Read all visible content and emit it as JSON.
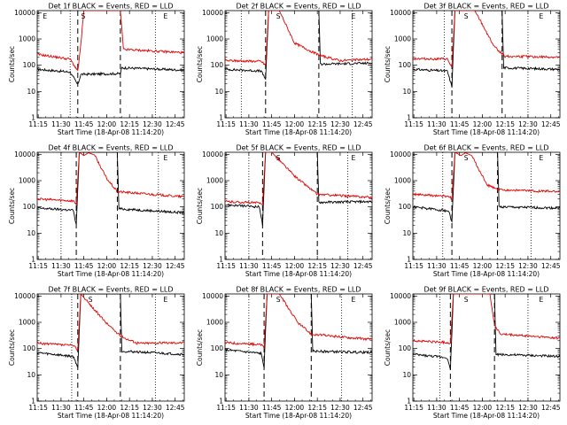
{
  "chart_data": {
    "type": "line",
    "layout": "3x3 grid",
    "xlabel": "Start Time (18-Apr-08 11:14:20)",
    "ylabel": "Counts/sec",
    "yscale": "log",
    "ylim": [
      1,
      12000
    ],
    "xlim": [
      "11:14:20",
      "12:51:00"
    ],
    "x_ticks": [
      "11:15",
      "11:30",
      "11:45",
      "12:00",
      "12:15",
      "12:30",
      "12:45"
    ],
    "y_ticks": [
      "1",
      "10",
      "100",
      "1000",
      "10000"
    ],
    "series_colors": {
      "black": "#000000",
      "red": "#e00000"
    },
    "panels": [
      {
        "title": "Det 1f BLACK = Events, RED = LLD",
        "markers": [
          "E",
          "S",
          "E"
        ],
        "dashed": [
          "11:41",
          "12:09"
        ],
        "dotted": [
          "11:36",
          "12:32"
        ],
        "black": [
          [
            "11:14:20",
            70
          ],
          [
            "11:36",
            55
          ],
          [
            "11:41",
            18
          ],
          [
            "11:43",
            45
          ],
          [
            "12:09",
            48
          ],
          [
            "12:10",
            80
          ],
          [
            "12:51",
            65
          ]
        ],
        "red": [
          [
            "11:14:20",
            260
          ],
          [
            "11:36",
            170
          ],
          [
            "11:41",
            60
          ],
          [
            "11:43",
            600
          ],
          [
            "11:45",
            12000
          ],
          [
            "12:09",
            12000
          ],
          [
            "12:11",
            400
          ],
          [
            "12:51",
            300
          ]
        ]
      },
      {
        "title": "Det 2f BLACK = Events, RED = LLD",
        "markers": [
          "S",
          "E"
        ],
        "dashed": [
          "11:41",
          "12:16"
        ],
        "dotted": [
          "11:25",
          "12:38"
        ],
        "black": [
          [
            "11:14:20",
            70
          ],
          [
            "11:38",
            60
          ],
          [
            "11:41",
            30
          ],
          [
            "11:43",
            12000
          ],
          [
            "12:16",
            12000
          ],
          [
            "12:17",
            110
          ],
          [
            "12:51",
            120
          ]
        ],
        "red": [
          [
            "11:14:20",
            150
          ],
          [
            "11:38",
            140
          ],
          [
            "11:41",
            100
          ],
          [
            "11:43",
            12000
          ],
          [
            "11:50",
            12000
          ],
          [
            "12:00",
            700
          ],
          [
            "12:16",
            240
          ],
          [
            "12:30",
            150
          ],
          [
            "12:51",
            170
          ]
        ]
      },
      {
        "title": "Det 3f BLACK = Events, RED = LLD",
        "markers": [
          "S",
          "E"
        ],
        "dashed": [
          "11:40",
          "12:13"
        ],
        "dotted": [
          "11:35",
          "12:30"
        ],
        "black": [
          [
            "11:14:20",
            70
          ],
          [
            "11:37",
            60
          ],
          [
            "11:40",
            15
          ],
          [
            "11:42",
            12000
          ],
          [
            "12:13",
            12000
          ],
          [
            "12:14",
            80
          ],
          [
            "12:51",
            70
          ]
        ],
        "red": [
          [
            "11:14:20",
            180
          ],
          [
            "11:37",
            170
          ],
          [
            "11:40",
            80
          ],
          [
            "11:42",
            12000
          ],
          [
            "11:55",
            12000
          ],
          [
            "12:08",
            500
          ],
          [
            "12:15",
            220
          ],
          [
            "12:51",
            200
          ]
        ]
      },
      {
        "title": "Det 4f BLACK = Events, RED = LLD",
        "markers": [
          "E"
        ],
        "dashed": [
          "11:40",
          "12:07"
        ],
        "dotted": [
          "11:30",
          "12:34"
        ],
        "black": [
          [
            "11:14:20",
            90
          ],
          [
            "11:38",
            75
          ],
          [
            "11:40",
            20
          ],
          [
            "11:42",
            12000
          ],
          [
            "12:07",
            12000
          ],
          [
            "12:08",
            85
          ],
          [
            "12:51",
            60
          ]
        ],
        "red": [
          [
            "11:14:20",
            200
          ],
          [
            "11:38",
            170
          ],
          [
            "11:40",
            130
          ],
          [
            "11:42",
            12000
          ],
          [
            "11:45",
            9000
          ],
          [
            "11:48",
            11500
          ],
          [
            "11:52",
            9500
          ],
          [
            "12:00",
            1200
          ],
          [
            "12:07",
            380
          ],
          [
            "12:51",
            240
          ]
        ]
      },
      {
        "title": "Det 5f BLACK = Events, RED = LLD",
        "markers": [
          "S",
          "E"
        ],
        "dashed": [
          "11:39",
          "12:15"
        ],
        "dotted": [
          "11:30",
          "12:35"
        ],
        "black": [
          [
            "11:14:20",
            120
          ],
          [
            "11:37",
            100
          ],
          [
            "11:39",
            20
          ],
          [
            "11:41",
            12000
          ],
          [
            "12:15",
            12000
          ],
          [
            "12:16",
            150
          ],
          [
            "12:51",
            160
          ]
        ],
        "red": [
          [
            "11:14:20",
            160
          ],
          [
            "11:37",
            140
          ],
          [
            "11:39",
            130
          ],
          [
            "11:41",
            12000
          ],
          [
            "11:45",
            12000
          ],
          [
            "12:00",
            1500
          ],
          [
            "12:15",
            300
          ],
          [
            "12:51",
            230
          ]
        ]
      },
      {
        "title": "Det 6f BLACK = Events, RED = LLD",
        "markers": [
          "S",
          "E"
        ],
        "dashed": [
          "11:40",
          "12:10"
        ],
        "dotted": [
          "11:34",
          "12:32"
        ],
        "black": [
          [
            "11:14:20",
            100
          ],
          [
            "11:38",
            70
          ],
          [
            "11:40",
            25
          ],
          [
            "11:42",
            12000
          ],
          [
            "12:10",
            12000
          ],
          [
            "12:11",
            100
          ],
          [
            "12:51",
            90
          ]
        ],
        "red": [
          [
            "11:14:20",
            300
          ],
          [
            "11:38",
            250
          ],
          [
            "11:40",
            200
          ],
          [
            "11:42",
            12000
          ],
          [
            "11:46",
            9000
          ],
          [
            "11:49",
            11500
          ],
          [
            "11:53",
            9000
          ],
          [
            "12:03",
            700
          ],
          [
            "12:10",
            450
          ],
          [
            "12:51",
            380
          ]
        ]
      },
      {
        "title": "Det 7f BLACK = Events, RED = LLD",
        "markers": [
          "S",
          "E"
        ],
        "dashed": [
          "11:41",
          "12:09"
        ],
        "dotted": [
          "11:37",
          "12:32"
        ],
        "black": [
          [
            "11:14:20",
            70
          ],
          [
            "11:38",
            50
          ],
          [
            "11:41",
            20
          ],
          [
            "11:43",
            12000
          ],
          [
            "12:09",
            12000
          ],
          [
            "12:10",
            80
          ],
          [
            "12:51",
            60
          ]
        ],
        "red": [
          [
            "11:14:20",
            160
          ],
          [
            "11:38",
            130
          ],
          [
            "11:41",
            90
          ],
          [
            "11:43",
            12000
          ],
          [
            "11:58",
            1200
          ],
          [
            "12:09",
            300
          ],
          [
            "12:20",
            160
          ],
          [
            "12:51",
            170
          ]
        ]
      },
      {
        "title": "Det 8f BLACK = Events, RED = LLD",
        "markers": [
          "S",
          "E"
        ],
        "dashed": [
          "11:40",
          "12:11"
        ],
        "dotted": [
          "11:30",
          "12:31"
        ],
        "black": [
          [
            "11:14:20",
            90
          ],
          [
            "11:38",
            65
          ],
          [
            "11:40",
            20
          ],
          [
            "11:42",
            12000
          ],
          [
            "12:11",
            12000
          ],
          [
            "12:12",
            80
          ],
          [
            "12:51",
            70
          ]
        ],
        "red": [
          [
            "11:14:20",
            170
          ],
          [
            "11:38",
            140
          ],
          [
            "11:40",
            110
          ],
          [
            "11:42",
            12000
          ],
          [
            "11:50",
            12000
          ],
          [
            "12:02",
            1000
          ],
          [
            "12:11",
            350
          ],
          [
            "12:51",
            220
          ]
        ]
      },
      {
        "title": "Det 9f BLACK = Events, RED = LLD",
        "markers": [
          "S",
          "E"
        ],
        "dashed": [
          "11:39",
          "12:08"
        ],
        "dotted": [
          "11:32",
          "12:30"
        ],
        "black": [
          [
            "11:14:20",
            60
          ],
          [
            "11:37",
            45
          ],
          [
            "11:39",
            15
          ],
          [
            "11:41",
            12000
          ],
          [
            "12:08",
            12000
          ],
          [
            "12:09",
            60
          ],
          [
            "12:51",
            50
          ]
        ],
        "red": [
          [
            "11:14:20",
            200
          ],
          [
            "11:37",
            170
          ],
          [
            "11:39",
            160
          ],
          [
            "11:41",
            12000
          ],
          [
            "12:05",
            12000
          ],
          [
            "12:08",
            800
          ],
          [
            "12:12",
            350
          ],
          [
            "12:51",
            250
          ]
        ]
      }
    ]
  }
}
